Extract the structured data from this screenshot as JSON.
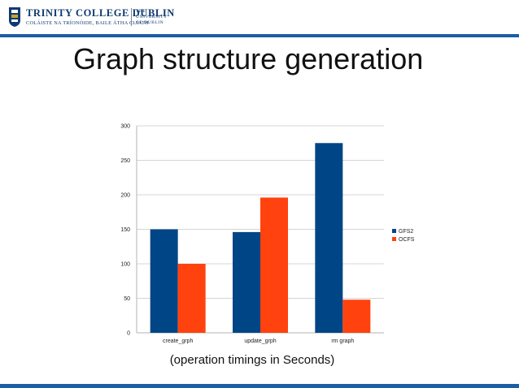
{
  "header": {
    "institution": "TRINITY COLLEGE DUBLIN",
    "institution_irish": "COLÁISTE NA TRÍONÓIDE, BAILE ÁTHA CLIATH",
    "university_line1": "THE",
    "university_line2": "UNIVERSITY",
    "university_line3": "OF DUBLIN"
  },
  "slide": {
    "title": "Graph structure generation",
    "caption": "(operation timings in Seconds)"
  },
  "chart_data": {
    "type": "bar",
    "categories": [
      "create_grph",
      "update_grph",
      "rm graph"
    ],
    "series": [
      {
        "name": "GFS2",
        "color": "#004586",
        "values": [
          150,
          146,
          275
        ]
      },
      {
        "name": "OCFS",
        "color": "#ff420e",
        "values": [
          100,
          196,
          48
        ]
      }
    ],
    "ylim": [
      0,
      300
    ],
    "yticks": [
      0,
      50,
      100,
      150,
      200,
      250,
      300
    ],
    "grid": true,
    "legend": "right"
  },
  "colors": {
    "brand_blue": "#1a5ea3",
    "text_navy": "#0e3a70"
  }
}
